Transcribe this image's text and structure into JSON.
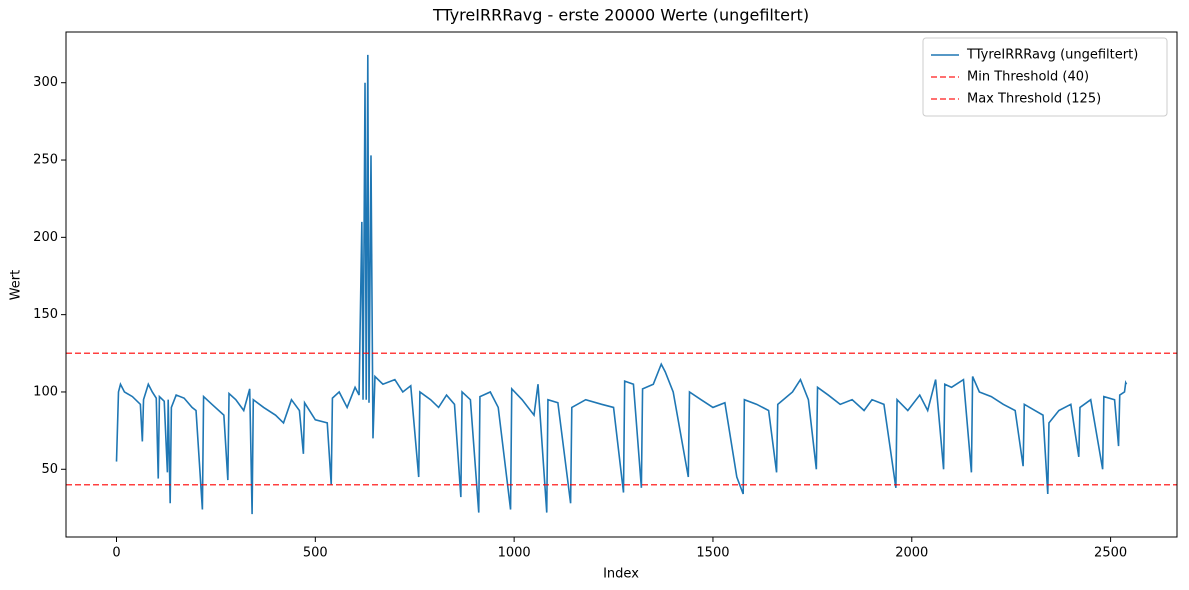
{
  "chart_data": {
    "type": "line",
    "title": "TTyreIRRRavg - erste 20000 Werte (ungefiltert)",
    "xlabel": "Index",
    "ylabel": "Wert",
    "x": [
      0,
      5,
      10,
      20,
      40,
      60,
      65,
      68,
      80,
      90,
      100,
      105,
      108,
      120,
      128,
      130,
      135,
      138,
      150,
      170,
      190,
      200,
      216,
      219,
      240,
      270,
      280,
      283,
      300,
      320,
      335,
      341,
      344,
      370,
      400,
      420,
      440,
      460,
      470,
      473,
      500,
      530,
      540,
      543,
      560,
      580,
      600,
      610,
      617,
      620,
      625,
      628,
      632,
      635,
      640,
      645,
      650,
      670,
      700,
      720,
      740,
      760,
      763,
      790,
      810,
      830,
      850,
      866,
      869,
      890,
      911,
      914,
      940,
      960,
      991,
      994,
      1020,
      1050,
      1060,
      1082,
      1085,
      1110,
      1142,
      1145,
      1180,
      1220,
      1250,
      1275,
      1278,
      1300,
      1320,
      1323,
      1350,
      1370,
      1380,
      1400,
      1438,
      1441,
      1470,
      1500,
      1530,
      1560,
      1576,
      1579,
      1610,
      1640,
      1660,
      1663,
      1700,
      1720,
      1740,
      1760,
      1763,
      1790,
      1820,
      1850,
      1880,
      1900,
      1930,
      1960,
      1963,
      1990,
      2020,
      2040,
      2060,
      2080,
      2083,
      2100,
      2130,
      2150,
      2153,
      2170,
      2200,
      2230,
      2260,
      2280,
      2283,
      2310,
      2330,
      2342,
      2345,
      2370,
      2400,
      2420,
      2423,
      2450,
      2480,
      2483,
      2510,
      2520,
      2523,
      2535,
      2538,
      2540
    ],
    "series": [
      {
        "name": "TTyreIRRRavg (ungefiltert)",
        "color": "#1f77b4",
        "values": [
          55,
          100,
          105,
          100,
          97,
          92,
          68,
          95,
          105,
          100,
          96,
          44,
          97,
          94,
          48,
          95,
          28,
          90,
          98,
          96,
          90,
          88,
          24,
          97,
          92,
          85,
          43,
          99,
          95,
          88,
          102,
          21,
          95,
          90,
          85,
          80,
          95,
          88,
          60,
          93,
          82,
          80,
          40,
          96,
          100,
          90,
          103,
          98,
          210,
          95,
          300,
          95,
          318,
          93,
          253,
          70,
          110,
          105,
          108,
          100,
          104,
          45,
          100,
          95,
          90,
          98,
          92,
          32,
          100,
          95,
          22,
          97,
          100,
          90,
          24,
          102,
          95,
          85,
          105,
          22,
          95,
          93,
          28,
          90,
          95,
          92,
          90,
          35,
          107,
          105,
          38,
          102,
          105,
          118,
          113,
          100,
          45,
          100,
          95,
          90,
          93,
          45,
          34,
          95,
          92,
          88,
          48,
          92,
          100,
          108,
          95,
          50,
          103,
          98,
          92,
          95,
          88,
          95,
          92,
          38,
          95,
          88,
          98,
          88,
          108,
          50,
          105,
          103,
          108,
          48,
          110,
          100,
          97,
          92,
          88,
          52,
          92,
          88,
          85,
          34,
          80,
          88,
          92,
          58,
          90,
          95,
          50,
          97,
          95,
          65,
          98,
          100,
          106,
          105
        ]
      }
    ],
    "hlines": [
      {
        "name": "Min Threshold (40)",
        "value": 40,
        "color": "#ff0000"
      },
      {
        "name": "Max Threshold (125)",
        "value": 125,
        "color": "#ff0000"
      }
    ],
    "xlim": [
      -127,
      2667
    ],
    "ylim": [
      6.2,
      332.8
    ],
    "xticks": [
      0,
      500,
      1000,
      1500,
      2000,
      2500
    ],
    "yticks": [
      50,
      100,
      150,
      200,
      250,
      300
    ],
    "legend": "upper right"
  }
}
